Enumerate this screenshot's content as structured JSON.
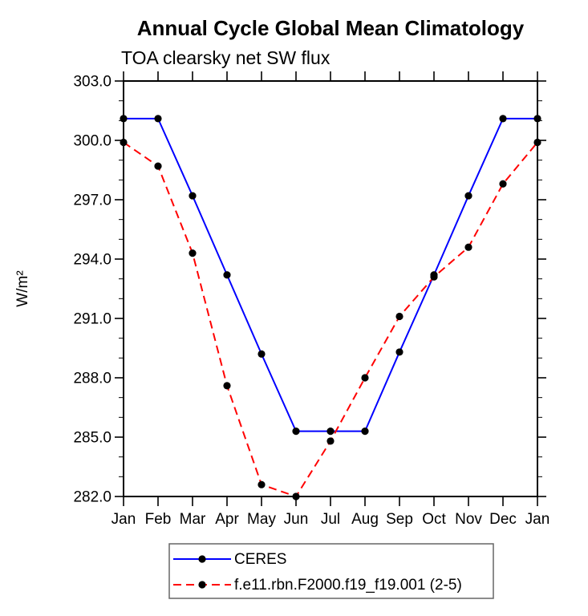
{
  "chart_data": {
    "type": "line",
    "title": "Annual Cycle Global Mean Climatology",
    "subtitle": "TOA clearsky net SW flux",
    "ylabel": "W/m²",
    "x_categories": [
      "Jan",
      "Feb",
      "Mar",
      "Apr",
      "May",
      "Jun",
      "Jul",
      "Aug",
      "Sep",
      "Oct",
      "Nov",
      "Dec",
      "Jan"
    ],
    "ylim": [
      282.0,
      303.0
    ],
    "ytick_interval": 3.0,
    "yminor_interval": 1.0,
    "ytick_labels": [
      "303.0",
      "300.0",
      "297.0",
      "294.0",
      "291.0",
      "288.0",
      "285.0",
      "282.0"
    ],
    "grid": false,
    "legend_position": "bottom-center-boxed",
    "series": [
      {
        "name": "CERES",
        "color": "#0000ff",
        "line_style": "solid",
        "marker": "filled-circle",
        "marker_color": "#000000",
        "values": [
          301.1,
          301.1,
          297.2,
          293.2,
          289.2,
          285.3,
          285.3,
          285.3,
          289.3,
          293.2,
          297.2,
          301.1,
          301.1
        ]
      },
      {
        "name": "f.e11.rbn.F2000.f19_f19.001 (2-5)",
        "color": "#ff0000",
        "line_style": "dashed",
        "marker": "filled-circle",
        "marker_color": "#000000",
        "values": [
          299.9,
          298.7,
          294.3,
          287.6,
          282.6,
          282.0,
          284.8,
          288.0,
          291.1,
          293.1,
          294.6,
          297.8,
          299.9
        ]
      }
    ]
  },
  "colors": {
    "axis": "#000000",
    "text": "#000000",
    "legend_border": "#666666",
    "background": "#ffffff"
  }
}
